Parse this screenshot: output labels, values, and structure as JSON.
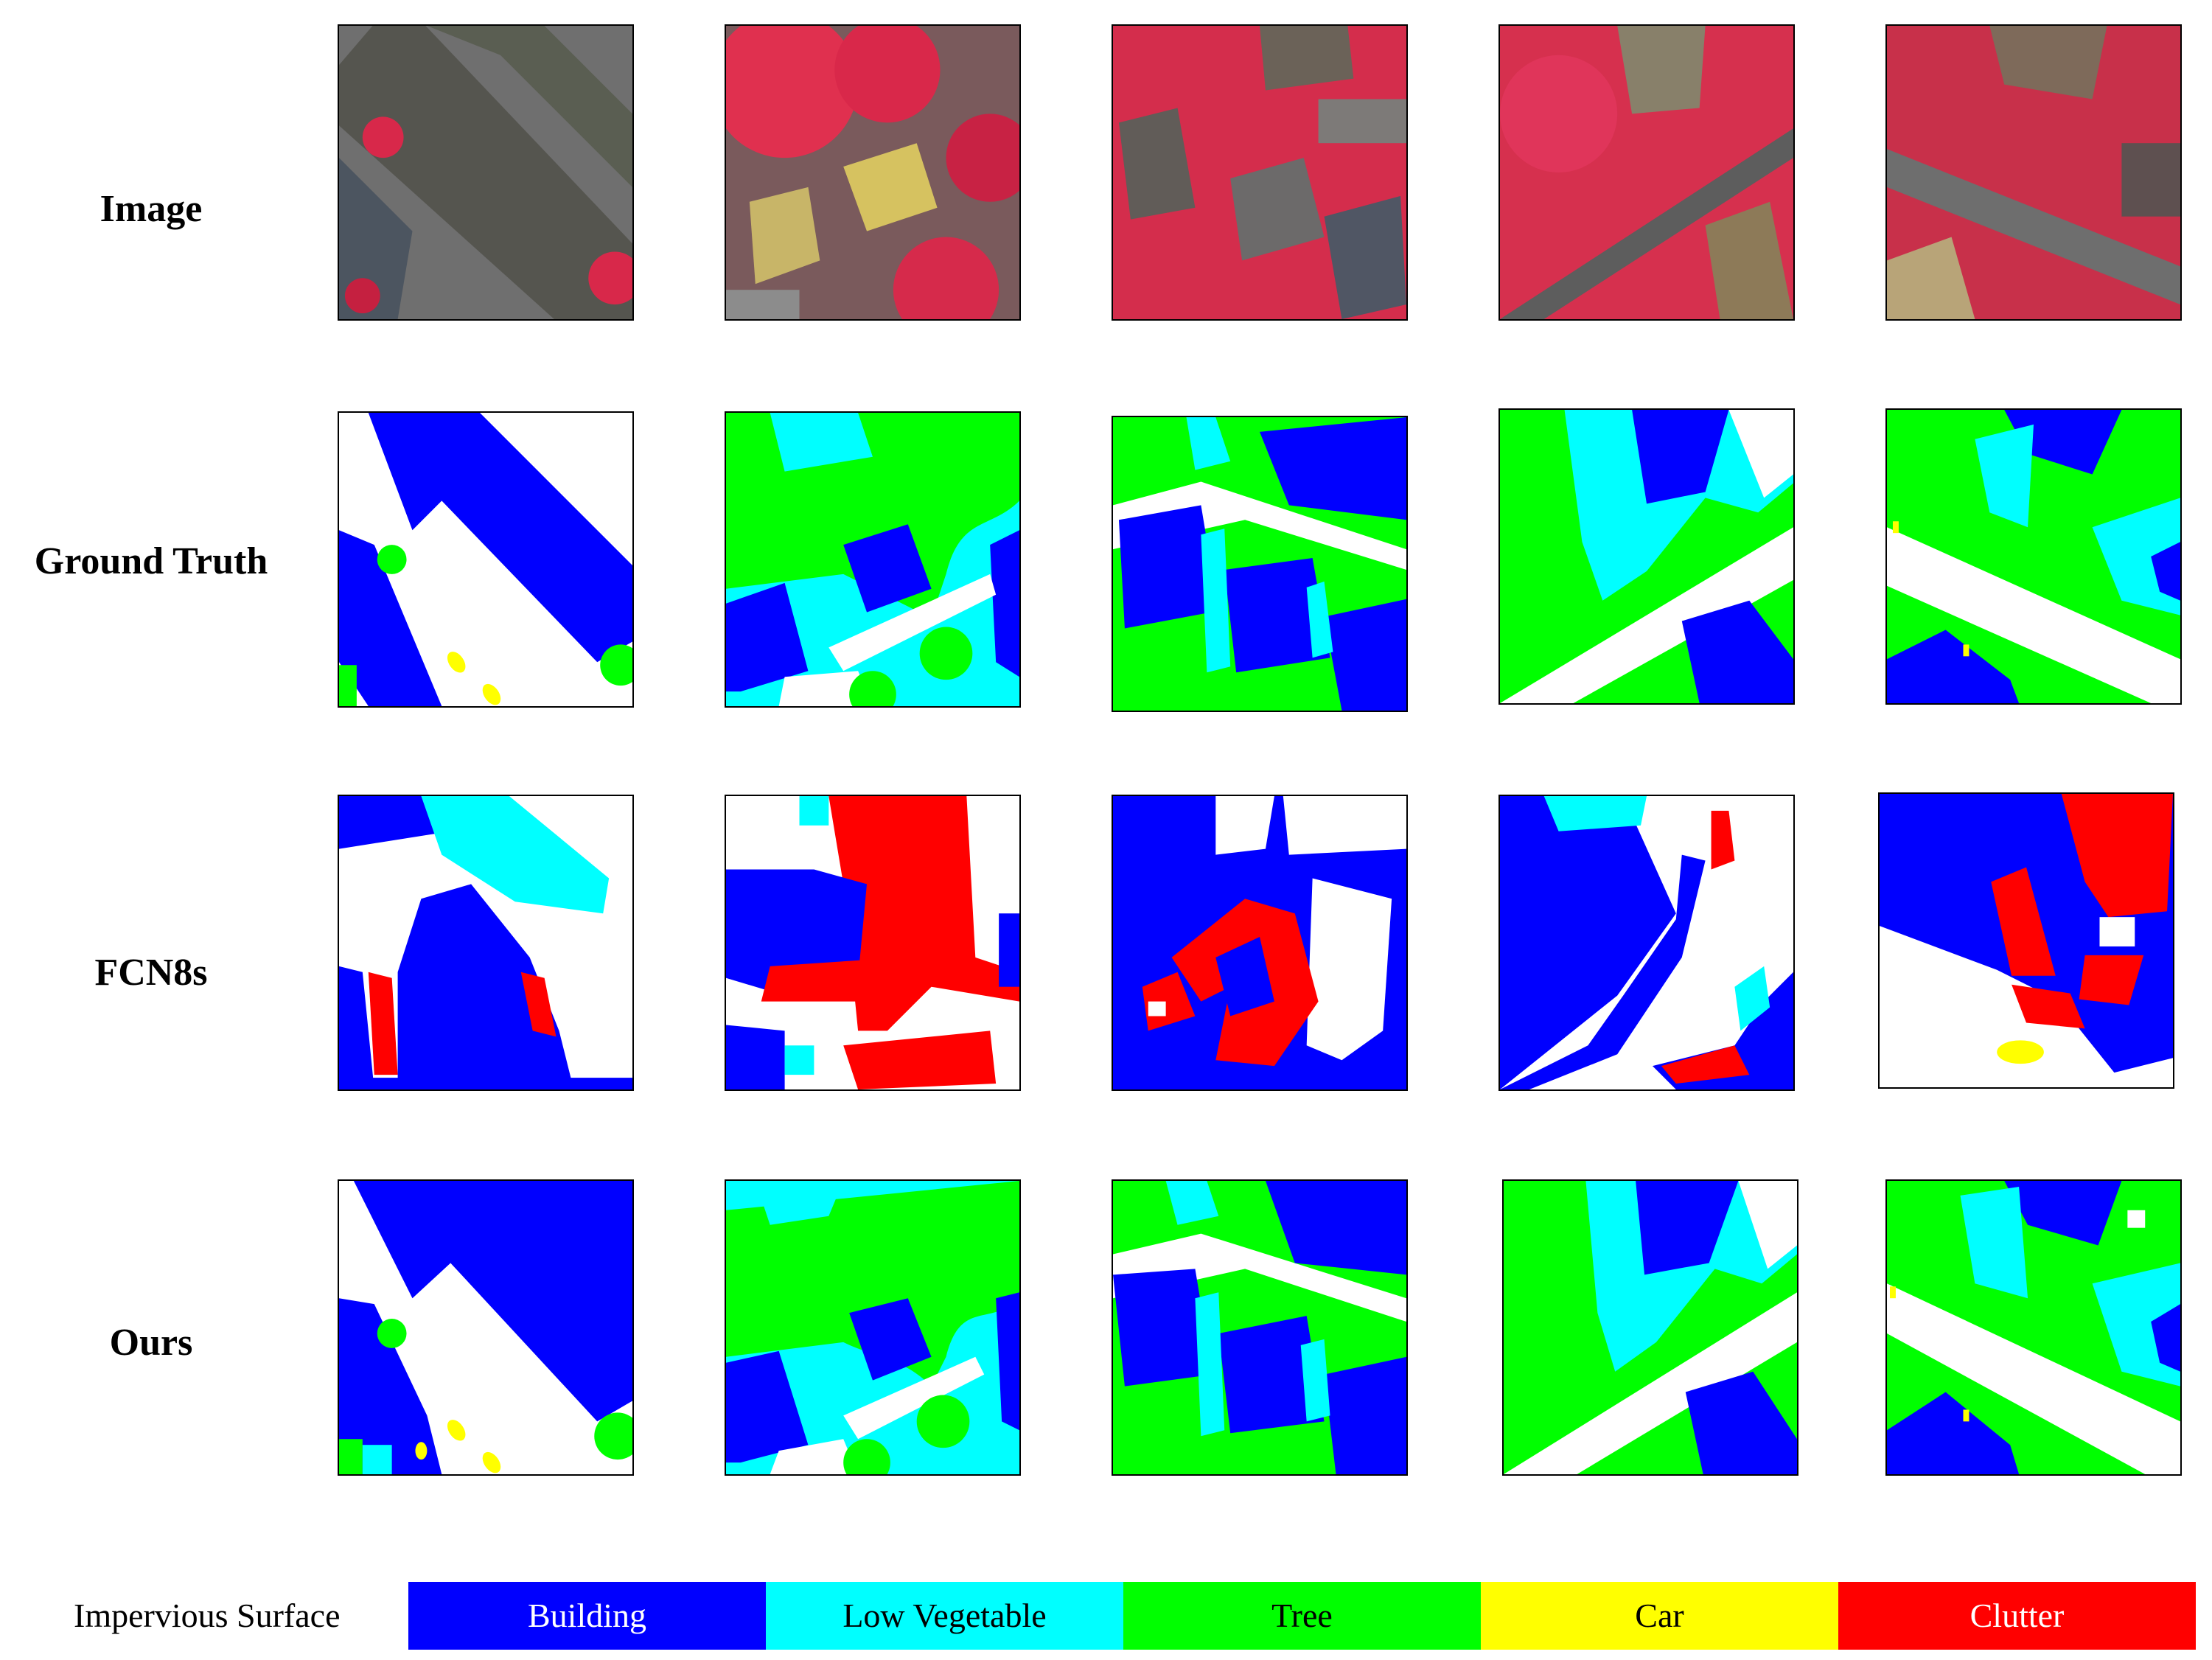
{
  "rows": [
    {
      "label": "Image"
    },
    {
      "label": "Ground Truth"
    },
    {
      "label": "FCN8s"
    },
    {
      "label": "Ours"
    }
  ],
  "legend": {
    "impervious": "Impervious Surface",
    "classes": [
      {
        "label": "Building",
        "color": "#0000ff",
        "text_color": "#ffffff"
      },
      {
        "label": "Low Vegetable",
        "color": "#00ffff",
        "text_color": "#000000"
      },
      {
        "label": "Tree",
        "color": "#00ff00",
        "text_color": "#000000"
      },
      {
        "label": "Car",
        "color": "#ffff00",
        "text_color": "#000000"
      },
      {
        "label": "Clutter",
        "color": "#ff0000",
        "text_color": "#ffffff"
      }
    ]
  }
}
